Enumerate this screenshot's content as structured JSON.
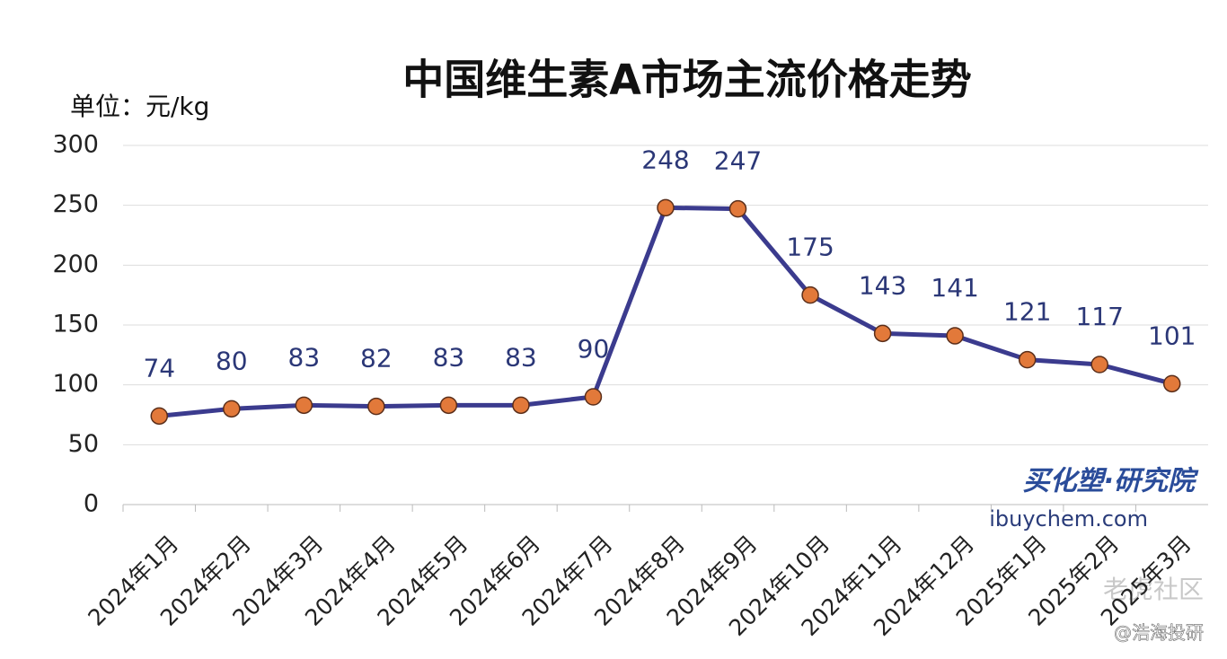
{
  "chart_data": {
    "type": "line",
    "title": "中国维生素A市场主流价格走势",
    "y_label": "单位：元/kg",
    "categories": [
      "2024年1月",
      "2024年2月",
      "2024年3月",
      "2024年4月",
      "2024年5月",
      "2024年6月",
      "2024年7月",
      "2024年8月",
      "2024年9月",
      "2024年10月",
      "2024年11月",
      "2024年12月",
      "2025年1月",
      "2025年2月",
      "2025年3月"
    ],
    "values": [
      74,
      80,
      83,
      82,
      83,
      83,
      90,
      248,
      247,
      175,
      143,
      141,
      121,
      117,
      101
    ],
    "color": "#3b3b8e",
    "marker_color": "#e2793a",
    "ylim": [
      0,
      300
    ],
    "yticks": [
      0,
      50,
      100,
      150,
      200,
      250,
      300
    ],
    "grid": true,
    "logo_name": "买化塑·研究院",
    "logo_url": "ibuychem.com",
    "overlay_site": "老虎社区",
    "overlay_author": "@浩海投研"
  }
}
